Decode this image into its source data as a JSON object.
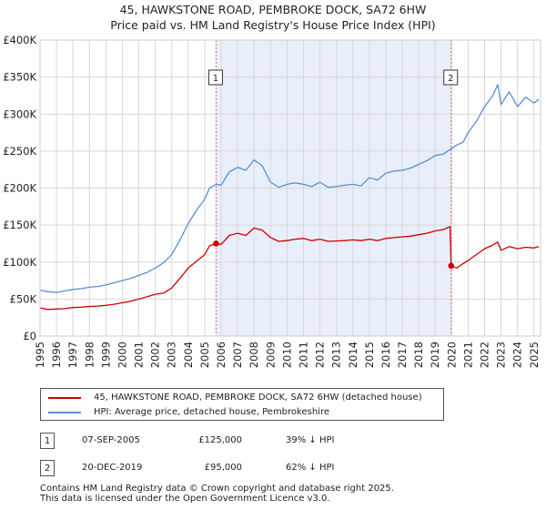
{
  "title": {
    "line1": "45, HAWKSTONE ROAD, PEMBROKE DOCK, SA72 6HW",
    "line2": "Price paid vs. HM Land Registry's House Price Index (HPI)"
  },
  "colors": {
    "property": "#cc0000",
    "hpi": "#5b8fd2",
    "shade": "#e8eefa",
    "vline": "#e06666",
    "grid": "#d8d8d8"
  },
  "chart_data": {
    "type": "line",
    "title": "45, HAWKSTONE ROAD, PEMBROKE DOCK, SA72 6HW — Price paid vs. HM Land Registry's House Price Index (HPI)",
    "xlabel": "",
    "ylabel": "",
    "xlim": [
      1995,
      2025.4
    ],
    "ylim": [
      0,
      400000
    ],
    "y_ticks": [
      0,
      50000,
      100000,
      150000,
      200000,
      250000,
      300000,
      350000,
      400000
    ],
    "y_tick_labels": [
      "£0",
      "£50K",
      "£100K",
      "£150K",
      "£200K",
      "£250K",
      "£300K",
      "£350K",
      "£400K"
    ],
    "x_ticks": [
      "1995",
      "1996",
      "1997",
      "1998",
      "1999",
      "2000",
      "2001",
      "2002",
      "2003",
      "2004",
      "2005",
      "2006",
      "2007",
      "2008",
      "2009",
      "2010",
      "2011",
      "2012",
      "2013",
      "2014",
      "2015",
      "2016",
      "2017",
      "2018",
      "2019",
      "2020",
      "2021",
      "2022",
      "2023",
      "2024",
      "2025"
    ],
    "grid": true,
    "shaded_range": [
      2005.69,
      2019.97
    ],
    "series": [
      {
        "name": "45, HAWKSTONE ROAD, PEMBROKE DOCK, SA72 6HW (detached house)",
        "x": [
          1995.0,
          1995.5,
          1996.0,
          1996.5,
          1997.0,
          1997.5,
          1998.0,
          1998.5,
          1999.0,
          1999.5,
          2000.0,
          2000.5,
          2001.0,
          2001.5,
          2002.0,
          2002.5,
          2003.0,
          2003.5,
          2004.0,
          2004.5,
          2005.0,
          2005.3,
          2005.69,
          2006.0,
          2006.5,
          2007.0,
          2007.5,
          2008.0,
          2008.5,
          2009.0,
          2009.5,
          2010.0,
          2010.5,
          2011.0,
          2011.5,
          2012.0,
          2012.5,
          2013.0,
          2013.5,
          2014.0,
          2014.5,
          2015.0,
          2015.5,
          2016.0,
          2016.5,
          2017.0,
          2017.5,
          2018.0,
          2018.5,
          2019.0,
          2019.5,
          2019.9,
          2019.97,
          2020.3,
          2020.7,
          2021.0,
          2021.5,
          2022.0,
          2022.5,
          2022.8,
          2023.0,
          2023.5,
          2024.0,
          2024.5,
          2025.0,
          2025.3
        ],
        "values": [
          38000,
          36000,
          36500,
          37000,
          38500,
          39000,
          40000,
          40500,
          41500,
          43000,
          45000,
          47000,
          50000,
          53000,
          56500,
          58000,
          65000,
          78000,
          92000,
          101000,
          110000,
          122000,
          125000,
          124000,
          136000,
          139000,
          136000,
          146000,
          143000,
          133000,
          128000,
          129000,
          131000,
          132000,
          129000,
          131000,
          128000,
          128500,
          129000,
          130000,
          129000,
          131000,
          129000,
          132000,
          133000,
          134000,
          135000,
          137000,
          139000,
          142000,
          144000,
          148000,
          95000,
          92000,
          98000,
          102000,
          110000,
          118000,
          123000,
          127000,
          116000,
          121000,
          118000,
          120000,
          119000,
          121000
        ]
      },
      {
        "name": "HPI: Average price, detached house, Pembrokeshire",
        "x": [
          1995.0,
          1995.5,
          1996.0,
          1996.5,
          1997.0,
          1997.5,
          1998.0,
          1998.5,
          1999.0,
          1999.5,
          2000.0,
          2000.5,
          2001.0,
          2001.5,
          2002.0,
          2002.5,
          2003.0,
          2003.5,
          2004.0,
          2004.5,
          2005.0,
          2005.3,
          2005.69,
          2006.0,
          2006.5,
          2007.0,
          2007.5,
          2008.0,
          2008.5,
          2009.0,
          2009.5,
          2010.0,
          2010.5,
          2011.0,
          2011.5,
          2012.0,
          2012.5,
          2013.0,
          2013.5,
          2014.0,
          2014.5,
          2015.0,
          2015.5,
          2016.0,
          2016.5,
          2017.0,
          2017.5,
          2018.0,
          2018.5,
          2019.0,
          2019.5,
          2019.97,
          2020.3,
          2020.7,
          2021.0,
          2021.5,
          2022.0,
          2022.5,
          2022.8,
          2023.0,
          2023.5,
          2024.0,
          2024.5,
          2025.0,
          2025.3
        ],
        "values": [
          62000,
          60000,
          59000,
          61000,
          63000,
          64000,
          66000,
          67000,
          69000,
          72000,
          75000,
          78000,
          82000,
          86000,
          92000,
          99000,
          110000,
          130000,
          152000,
          170000,
          185000,
          200000,
          205000,
          204000,
          222000,
          228000,
          224000,
          238000,
          230000,
          208000,
          201000,
          205000,
          207000,
          205000,
          202000,
          208000,
          201000,
          202000,
          204000,
          205000,
          203000,
          214000,
          211000,
          220000,
          223000,
          224000,
          227000,
          232000,
          237000,
          244000,
          246000,
          253000,
          258000,
          262000,
          275000,
          290000,
          310000,
          325000,
          340000,
          313000,
          330000,
          310000,
          323000,
          315000,
          320000
        ]
      }
    ],
    "markers": [
      {
        "label": "1",
        "x": 2005.69,
        "value": 125000
      },
      {
        "label": "2",
        "x": 2019.97,
        "value": 95000
      }
    ]
  },
  "legend": {
    "items": [
      {
        "label": "45, HAWKSTONE ROAD, PEMBROKE DOCK, SA72 6HW (detached house)"
      },
      {
        "label": "HPI: Average price, detached house, Pembrokeshire"
      }
    ]
  },
  "transactions": [
    {
      "num": "1",
      "date": "07-SEP-2005",
      "price": "£125,000",
      "hpi": "39% ↓ HPI"
    },
    {
      "num": "2",
      "date": "20-DEC-2019",
      "price": "£95,000",
      "hpi": "62% ↓ HPI"
    }
  ],
  "footer": {
    "line1": "Contains HM Land Registry data © Crown copyright and database right 2025.",
    "line2": "This data is licensed under the Open Government Licence v3.0."
  }
}
